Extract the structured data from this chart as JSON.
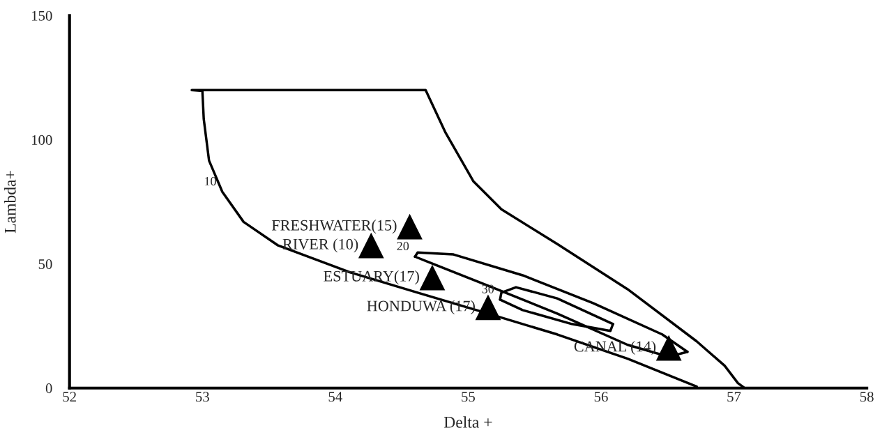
{
  "chart_data": {
    "type": "scatter",
    "xlabel": "Delta +",
    "ylabel": "Lambda+",
    "xlim": [
      52,
      58
    ],
    "xticks": [
      52,
      53,
      54,
      55,
      56,
      57,
      58
    ],
    "ylim": [
      0,
      150
    ],
    "yticks": [
      0,
      50,
      100,
      150
    ],
    "grid": false,
    "legend": false,
    "series": [
      {
        "name": "FRESHWATER(15)",
        "marker": "triangle",
        "color": "#000000",
        "x": [
          54.56
        ],
        "values": [
          65
        ]
      },
      {
        "name": "RIVER (10)",
        "marker": "triangle",
        "color": "#000000",
        "x": [
          54.27
        ],
        "values": [
          57.4
        ]
      },
      {
        "name": "ESTUARY(17)",
        "marker": "triangle",
        "color": "#000000",
        "x": [
          54.73
        ],
        "values": [
          44.5
        ]
      },
      {
        "name": "HONDUWA (17)",
        "marker": "triangle",
        "color": "#000000",
        "x": [
          55.15
        ],
        "values": [
          32.5
        ]
      },
      {
        "name": "CANAL (14)",
        "marker": "triangle",
        "color": "#000000",
        "x": [
          56.51
        ],
        "values": [
          16.2
        ]
      },
      {
        "type": "line",
        "name": "10",
        "marker": "none",
        "color": "#000000",
        "x": [
          56.72,
          56.2,
          55.67,
          55.15,
          54.62,
          54.1,
          53.57,
          53.31,
          53.15,
          53.05,
          53.01,
          53.0,
          52.92,
          54.68,
          54.83,
          55.04,
          55.25,
          55.67,
          56.2,
          56.72,
          56.93,
          57.03,
          57.08
        ],
        "values": [
          0.6,
          11.8,
          21.6,
          30.0,
          38.4,
          46.8,
          57.4,
          66.9,
          79.0,
          91.6,
          108.4,
          119.6,
          120,
          120,
          102.8,
          83.2,
          72.0,
          58.0,
          39.8,
          18.8,
          9.0,
          2.0,
          0
        ]
      },
      {
        "type": "line",
        "name": "20",
        "marker": "none",
        "color": "#000000",
        "x": [
          54.6,
          54.62,
          54.89,
          55.41,
          55.94,
          56.46,
          56.65
        ],
        "values": [
          52.9,
          54.6,
          53.8,
          45.4,
          34.2,
          21.6,
          14.6
        ]
      },
      {
        "type": "line",
        "marker": "none",
        "color": "#000000",
        "x": [
          54.6,
          54.73,
          55.15,
          55.67,
          56.2,
          56.51,
          56.65
        ],
        "values": [
          52.9,
          50.1,
          41.2,
          30.0,
          17.4,
          12.6,
          14.6
        ]
      },
      {
        "type": "line",
        "name": "30",
        "marker": "none",
        "color": "#000000",
        "x": [
          55.24,
          55.25,
          55.36,
          55.67,
          56.09
        ],
        "values": [
          35.6,
          38.4,
          40.6,
          36.1,
          25.8
        ]
      },
      {
        "type": "line",
        "marker": "none",
        "color": "#000000",
        "x": [
          55.24,
          55.41,
          55.78,
          56.07,
          56.09
        ],
        "values": [
          35.6,
          31.4,
          25.8,
          23.0,
          25.8
        ]
      }
    ]
  }
}
